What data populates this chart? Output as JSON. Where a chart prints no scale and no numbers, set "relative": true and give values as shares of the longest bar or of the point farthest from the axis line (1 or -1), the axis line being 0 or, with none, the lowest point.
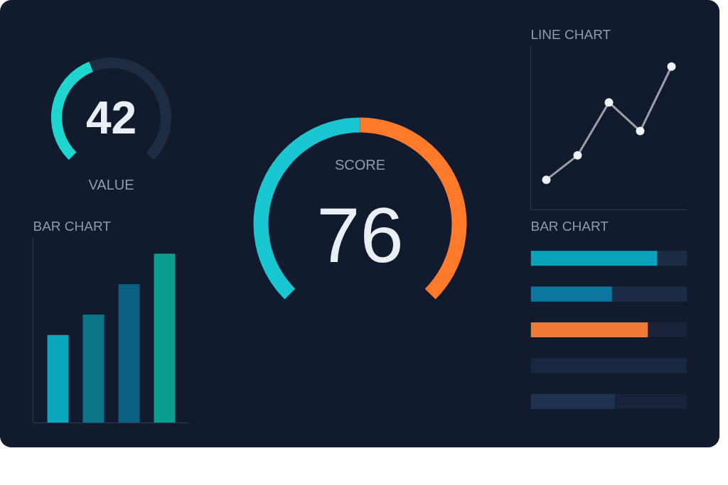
{
  "chart_data": [
    {
      "type": "donut",
      "title": "VALUE",
      "categories": [
        null,
        null
      ],
      "values": [
        42,
        58
      ],
      "colors": [
        "#1ed6d0",
        "#1f2b40"
      ],
      "annotations": [
        "42"
      ]
    },
    {
      "type": "bar",
      "title": "BAR CHART",
      "categories": [
        null,
        null,
        null,
        null
      ],
      "values": [
        0.52,
        0.64,
        0.82,
        1
      ],
      "colors": [
        "#0aa6bd",
        "#0b7486",
        "#0b5f80",
        "#0a9e90"
      ],
      "relative": true
    },
    {
      "type": "donut",
      "title": "SCORE",
      "categories": [
        null,
        null
      ],
      "values": [
        50,
        50
      ],
      "colors": [
        "#19c6d2",
        "#ff7a2a"
      ],
      "annotations": [
        "76"
      ]
    },
    {
      "type": "line",
      "title": "LINE CHART",
      "categories": [
        null,
        null,
        null,
        null,
        null
      ],
      "values": [
        0.21,
        0.38,
        0.75,
        0.55,
        1
      ],
      "color": "#9a9ea8",
      "marker": "circle",
      "relative": true
    },
    {
      "type": "bar",
      "orientation": "horizontal",
      "stacked": true,
      "title": "BAR CHART",
      "categories": [
        null,
        null,
        null,
        null,
        null
      ],
      "relative": true,
      "series": [
        {
          "colors": [
            "#0aa3bb",
            "#0b76a0",
            "#f27a35",
            "#1a2740",
            "#1f3250"
          ],
          "values": [
            0.81,
            0.52,
            0.75,
            0,
            0.54
          ]
        },
        {
          "colors": [
            "#1c2b44",
            "#1c2b44",
            "#18223a",
            "#1a2740",
            "#18223a"
          ],
          "values": [
            0.19,
            0.48,
            0.25,
            1,
            0.46
          ]
        }
      ]
    }
  ]
}
